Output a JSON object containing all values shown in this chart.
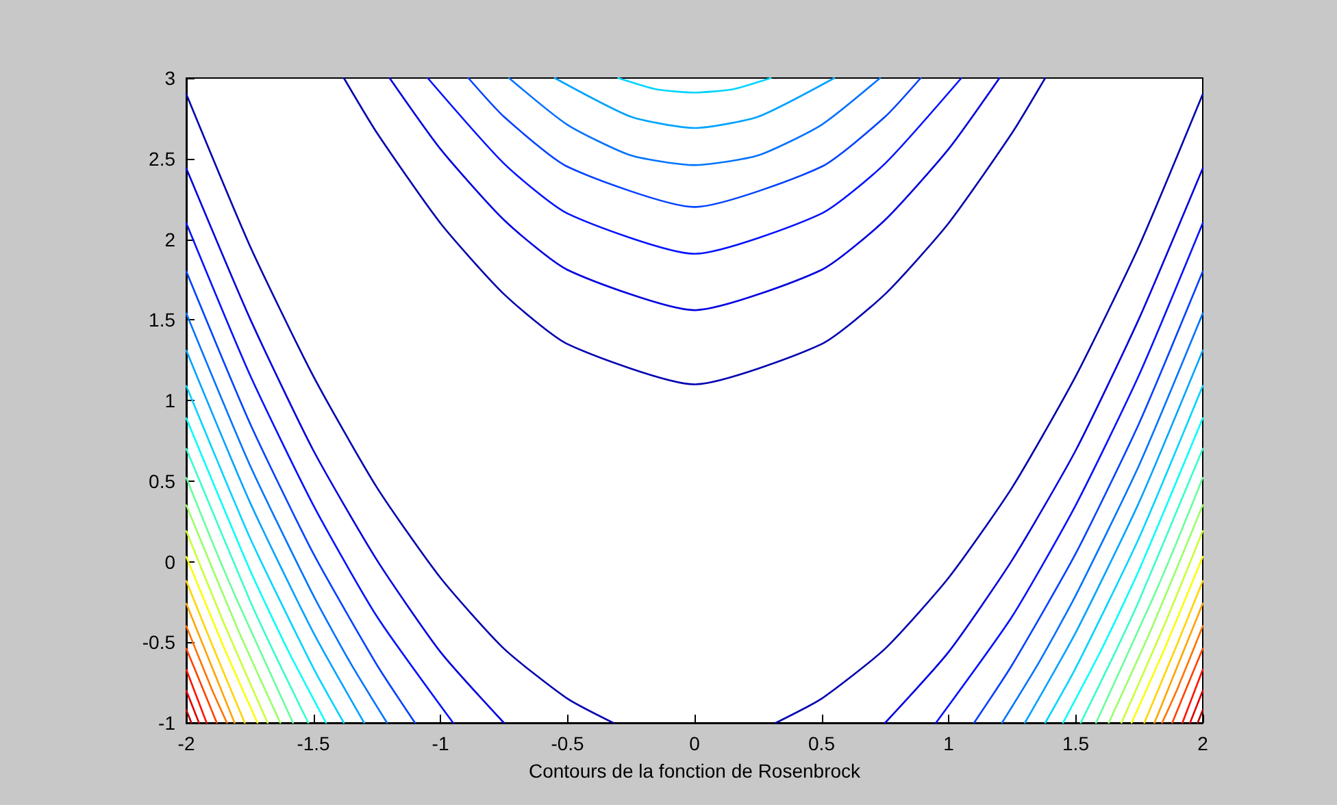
{
  "chart_data": {
    "type": "line",
    "xlabel": "Contours de la fonction de Rosenbrock",
    "xlim": [
      -2,
      2
    ],
    "ylim": [
      -1,
      3
    ],
    "xticks": [
      -2,
      -1.5,
      -1,
      -0.5,
      0,
      0.5,
      1,
      1.5,
      2
    ],
    "yticks": [
      -1,
      -0.5,
      0,
      0.5,
      1,
      1.5,
      2,
      2.5,
      3
    ],
    "marker": "none",
    "line_style": "solid",
    "series": [
      {
        "color": "#0000b0",
        "x": [
          -2,
          -1.75,
          -1.5,
          -1.25,
          -1,
          -0.75,
          -0.5,
          -0.32
        ],
        "values": [
          2.9,
          1.96,
          1.15,
          0.46,
          -0.1,
          -0.54,
          -0.85,
          -1
        ]
      },
      {
        "color": "#0000b0",
        "x": [
          2,
          1.75,
          1.5,
          1.25,
          1,
          0.75,
          0.5,
          0.32
        ],
        "values": [
          2.9,
          1.96,
          1.15,
          0.46,
          -0.1,
          -0.54,
          -0.85,
          -1
        ]
      },
      {
        "color": "#0000b0",
        "x": [
          -1.38,
          -1.25,
          -1,
          -0.75,
          -0.5,
          0,
          0.5,
          0.75,
          1,
          1.25,
          1.38
        ],
        "values": [
          3,
          2.66,
          2.1,
          1.66,
          1.35,
          1.1,
          1.35,
          1.66,
          2.1,
          2.66,
          3
        ]
      },
      {
        "color": "#0000e0",
        "x": [
          -2,
          -1.75,
          -1.5,
          -1.25,
          -1,
          -0.75
        ],
        "values": [
          2.44,
          1.51,
          0.69,
          0.01,
          -0.56,
          -1
        ]
      },
      {
        "color": "#0000e0",
        "x": [
          2,
          1.75,
          1.5,
          1.25,
          1,
          0.75
        ],
        "values": [
          2.44,
          1.51,
          0.69,
          0.01,
          -0.56,
          -1
        ]
      },
      {
        "color": "#0000e0",
        "x": [
          -1.2,
          -1,
          -0.75,
          -0.5,
          0,
          0.5,
          0.75,
          1,
          1.2
        ],
        "values": [
          3,
          2.56,
          2.12,
          1.81,
          1.56,
          1.81,
          2.12,
          2.56,
          3
        ]
      },
      {
        "color": "#0012ff",
        "x": [
          -2,
          -1.75,
          -1.5,
          -1.25,
          -0.95
        ],
        "values": [
          2.1,
          1.16,
          0.35,
          -0.34,
          -1
        ]
      },
      {
        "color": "#0012ff",
        "x": [
          2,
          1.75,
          1.5,
          1.25,
          0.95
        ],
        "values": [
          2.1,
          1.16,
          0.35,
          -0.34,
          -1
        ]
      },
      {
        "color": "#0012ff",
        "x": [
          -1.05,
          -0.75,
          -0.5,
          0,
          0.5,
          0.75,
          1.05
        ],
        "values": [
          3,
          2.47,
          2.16,
          1.91,
          2.16,
          2.47,
          3
        ]
      },
      {
        "color": "#0042ff",
        "x": [
          -2,
          -1.75,
          -1.5,
          -1.25,
          -1.1
        ],
        "values": [
          1.8,
          0.86,
          0.05,
          -0.64,
          -1
        ]
      },
      {
        "color": "#0042ff",
        "x": [
          2,
          1.75,
          1.5,
          1.25,
          1.1
        ],
        "values": [
          1.8,
          0.86,
          0.05,
          -0.64,
          -1
        ]
      },
      {
        "color": "#0042ff",
        "x": [
          -0.89,
          -0.75,
          -0.5,
          0,
          0.5,
          0.75,
          0.89
        ],
        "values": [
          3,
          2.76,
          2.45,
          2.2,
          2.45,
          2.76,
          3
        ]
      },
      {
        "color": "#0073ff",
        "x": [
          -2,
          -1.75,
          -1.5,
          -1.35,
          -1.21
        ],
        "values": [
          1.54,
          0.6,
          -0.21,
          -0.64,
          -1
        ]
      },
      {
        "color": "#0073ff",
        "x": [
          2,
          1.75,
          1.5,
          1.35,
          1.21
        ],
        "values": [
          1.54,
          0.6,
          -0.21,
          -0.64,
          -1
        ]
      },
      {
        "color": "#0073ff",
        "x": [
          -0.73,
          -0.5,
          -0.25,
          0,
          0.25,
          0.5,
          0.73
        ],
        "values": [
          3,
          2.71,
          2.52,
          2.46,
          2.52,
          2.71,
          3
        ]
      },
      {
        "color": "#00a3ff",
        "x": [
          -2,
          -1.75,
          -1.5,
          -1.3
        ],
        "values": [
          1.31,
          0.37,
          -0.44,
          -1
        ]
      },
      {
        "color": "#00a3ff",
        "x": [
          2,
          1.75,
          1.5,
          1.3
        ],
        "values": [
          1.31,
          0.37,
          -0.44,
          -1
        ]
      },
      {
        "color": "#00a3ff",
        "x": [
          -0.55,
          -0.25,
          0,
          0.25,
          0.55
        ],
        "values": [
          3,
          2.76,
          2.69,
          2.76,
          3
        ]
      },
      {
        "color": "#00d4ff",
        "x": [
          -2,
          -1.75,
          -1.5,
          -1.38
        ],
        "values": [
          1.09,
          0.15,
          -0.66,
          -1
        ]
      },
      {
        "color": "#00d4ff",
        "x": [
          2,
          1.75,
          1.5,
          1.38
        ],
        "values": [
          1.09,
          0.15,
          -0.66,
          -1
        ]
      },
      {
        "color": "#00d4ff",
        "x": [
          -0.3,
          -0.15,
          0,
          0.15,
          0.3
        ],
        "values": [
          3,
          2.93,
          2.91,
          2.93,
          3
        ]
      },
      {
        "color": "#05fffa",
        "x": [
          -2,
          -1.75,
          -1.6,
          -1.45
        ],
        "values": [
          0.89,
          -0.05,
          -0.55,
          -1
        ]
      },
      {
        "color": "#05fffa",
        "x": [
          2,
          1.75,
          1.6,
          1.45
        ],
        "values": [
          0.89,
          -0.05,
          -0.55,
          -1
        ]
      },
      {
        "color": "#36ffc9",
        "x": [
          -2,
          -1.75,
          -1.65,
          -1.52
        ],
        "values": [
          0.7,
          -0.24,
          -0.58,
          -1
        ]
      },
      {
        "color": "#36ffc9",
        "x": [
          2,
          1.75,
          1.65,
          1.52
        ],
        "values": [
          0.7,
          -0.24,
          -0.58,
          -1
        ]
      },
      {
        "color": "#66ff99",
        "x": [
          -2,
          -1.9,
          -1.8,
          -1.58
        ],
        "values": [
          0.52,
          0.13,
          -0.24,
          -1
        ]
      },
      {
        "color": "#66ff99",
        "x": [
          2,
          1.9,
          1.8,
          1.58
        ],
        "values": [
          0.52,
          0.13,
          -0.24,
          -1
        ]
      },
      {
        "color": "#99ff66",
        "x": [
          -2,
          -1.8,
          -1.63
        ],
        "values": [
          0.35,
          -0.41,
          -1
        ]
      },
      {
        "color": "#99ff66",
        "x": [
          2,
          1.8,
          1.63
        ],
        "values": [
          0.35,
          -0.41,
          -1
        ]
      },
      {
        "color": "#c9ff36",
        "x": [
          -2,
          -1.85,
          -1.68
        ],
        "values": [
          0.19,
          -0.39,
          -1
        ]
      },
      {
        "color": "#c9ff36",
        "x": [
          2,
          1.85,
          1.68
        ],
        "values": [
          0.19,
          -0.39,
          -1
        ]
      },
      {
        "color": "#faff05",
        "x": [
          -2,
          -1.85,
          -1.72
        ],
        "values": [
          0.03,
          -0.54,
          -1
        ]
      },
      {
        "color": "#faff05",
        "x": [
          2,
          1.85,
          1.72
        ],
        "values": [
          0.03,
          -0.54,
          -1
        ]
      },
      {
        "color": "#ffd400",
        "x": [
          -2,
          -1.9,
          -1.77
        ],
        "values": [
          -0.12,
          -0.51,
          -1
        ]
      },
      {
        "color": "#ffd400",
        "x": [
          2,
          1.9,
          1.77
        ],
        "values": [
          -0.12,
          -0.51,
          -1
        ]
      },
      {
        "color": "#ffa300",
        "x": [
          -2,
          -1.9,
          -1.81
        ],
        "values": [
          -0.26,
          -0.65,
          -1
        ]
      },
      {
        "color": "#ffa300",
        "x": [
          2,
          1.9,
          1.81
        ],
        "values": [
          -0.26,
          -0.65,
          -1
        ]
      },
      {
        "color": "#ff7300",
        "x": [
          -2,
          -1.9,
          -1.84
        ],
        "values": [
          -0.4,
          -0.79,
          -1
        ]
      },
      {
        "color": "#ff7300",
        "x": [
          2,
          1.9,
          1.84
        ],
        "values": [
          -0.4,
          -0.79,
          -1
        ]
      },
      {
        "color": "#ff4200",
        "x": [
          -2,
          -1.95,
          -1.88
        ],
        "values": [
          -0.54,
          -0.73,
          -1
        ]
      },
      {
        "color": "#ff4200",
        "x": [
          2,
          1.95,
          1.88
        ],
        "values": [
          -0.54,
          -0.73,
          -1
        ]
      },
      {
        "color": "#ff1200",
        "x": [
          -2,
          -1.92
        ],
        "values": [
          -0.67,
          -1
        ]
      },
      {
        "color": "#ff1200",
        "x": [
          2,
          1.92
        ],
        "values": [
          -0.67,
          -1
        ]
      },
      {
        "color": "#e00000",
        "x": [
          -2,
          -1.95
        ],
        "values": [
          -0.8,
          -1
        ]
      },
      {
        "color": "#e00000",
        "x": [
          2,
          1.95
        ],
        "values": [
          -0.8,
          -1
        ]
      },
      {
        "color": "#b00000",
        "x": [
          -2,
          -1.98
        ],
        "values": [
          -0.92,
          -1
        ]
      },
      {
        "color": "#b00000",
        "x": [
          2,
          1.98
        ],
        "values": [
          -0.92,
          -1
        ]
      }
    ]
  }
}
